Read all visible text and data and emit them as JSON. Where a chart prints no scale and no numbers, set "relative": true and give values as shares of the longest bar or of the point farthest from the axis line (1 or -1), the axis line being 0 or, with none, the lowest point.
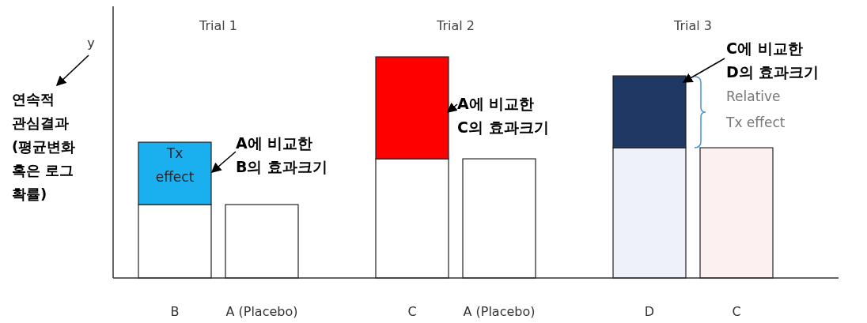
{
  "chart_data": {
    "type": "bar",
    "stacked": true,
    "relative": true,
    "ylabel": "연속적\n관심결과\n(평균변화\n혹은 로그\n확률)",
    "categories": [
      "B",
      "A (Placebo)",
      "C",
      "A (Placebo)",
      "D",
      "C"
    ],
    "series": [
      {
        "colors": [
          "#ffffff",
          "#ffffff",
          "#ffffff",
          "#ffffff",
          "#eef1f8",
          "#fcf0f0"
        ],
        "values": [
          0.332,
          0.332,
          0.539,
          0.539,
          0.589,
          0.589
        ]
      },
      {
        "colors": [
          "#1ab0f0",
          null,
          "#ff0000",
          null,
          "#1f3864",
          null
        ],
        "values": [
          0.282,
          null,
          0.461,
          null,
          0.325,
          null
        ]
      }
    ],
    "annotations": [
      "y",
      "Trial 1",
      "Trial 2",
      "Trial 3",
      "Tx\neffect",
      "A에 비교한\nB의 효과크기",
      "A에 비교한\nC의 효과크기",
      "C에 비교한\nD의 효과크기",
      "Relative\nTx effect"
    ]
  }
}
